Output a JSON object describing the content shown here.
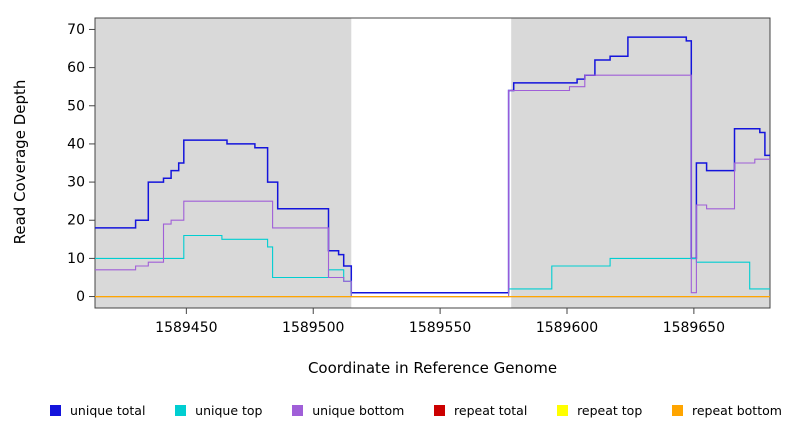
{
  "chart_data": {
    "type": "line",
    "subtype": "step-coverage",
    "title": "",
    "xlabel": "Coordinate in Reference Genome",
    "ylabel": "Read Coverage Depth",
    "x_range": [
      1589414,
      1589680
    ],
    "y_range": [
      -3,
      73
    ],
    "x_ticks": [
      1589450,
      1589500,
      1589550,
      1589600,
      1589650
    ],
    "y_ticks": [
      0,
      10,
      20,
      30,
      40,
      50,
      60,
      70
    ],
    "grid": false,
    "legend_position": "bottom",
    "plot_background": "#D9D9D9",
    "figure_background": "#FFFFFF",
    "axis_color": "#444444",
    "highlight_region": {
      "x_start": 1589515,
      "x_end": 1589578,
      "color": "#FFFFFF"
    },
    "series": [
      {
        "name": "unique total",
        "color": "#1414DC",
        "steps": [
          [
            1589414,
            18
          ],
          [
            1589430,
            20
          ],
          [
            1589435,
            30
          ],
          [
            1589441,
            31
          ],
          [
            1589444,
            33
          ],
          [
            1589447,
            35
          ],
          [
            1589449,
            41
          ],
          [
            1589464,
            41
          ],
          [
            1589466,
            40
          ],
          [
            1589477,
            39
          ],
          [
            1589482,
            30
          ],
          [
            1589486,
            23
          ],
          [
            1589504,
            23
          ],
          [
            1589506,
            12
          ],
          [
            1589510,
            11
          ],
          [
            1589512,
            8
          ],
          [
            1589515,
            1
          ],
          [
            1589577,
            54
          ],
          [
            1589579,
            56
          ],
          [
            1589604,
            57
          ],
          [
            1589607,
            58
          ],
          [
            1589611,
            62
          ],
          [
            1589617,
            63
          ],
          [
            1589624,
            68
          ],
          [
            1589646,
            68
          ],
          [
            1589647,
            67
          ],
          [
            1589649,
            10
          ],
          [
            1589651,
            35
          ],
          [
            1589655,
            33
          ],
          [
            1589666,
            44
          ],
          [
            1589676,
            43
          ],
          [
            1589678,
            37
          ]
        ]
      },
      {
        "name": "unique top",
        "color": "#00CED1",
        "steps": [
          [
            1589414,
            10
          ],
          [
            1589449,
            16
          ],
          [
            1589464,
            15
          ],
          [
            1589482,
            13
          ],
          [
            1589484,
            5
          ],
          [
            1589506,
            7
          ],
          [
            1589512,
            4
          ],
          [
            1589515,
            0
          ],
          [
            1589577,
            2
          ],
          [
            1589594,
            8
          ],
          [
            1589617,
            10
          ],
          [
            1589651,
            9
          ],
          [
            1589672,
            2
          ]
        ]
      },
      {
        "name": "unique bottom",
        "color": "#A05FD8",
        "steps": [
          [
            1589414,
            7
          ],
          [
            1589430,
            8
          ],
          [
            1589435,
            9
          ],
          [
            1589441,
            19
          ],
          [
            1589444,
            20
          ],
          [
            1589449,
            25
          ],
          [
            1589484,
            18
          ],
          [
            1589506,
            5
          ],
          [
            1589512,
            4
          ],
          [
            1589515,
            0
          ],
          [
            1589577,
            54
          ],
          [
            1589601,
            55
          ],
          [
            1589607,
            58
          ],
          [
            1589649,
            1
          ],
          [
            1589651,
            24
          ],
          [
            1589655,
            23
          ],
          [
            1589666,
            35
          ],
          [
            1589674,
            36
          ]
        ]
      },
      {
        "name": "repeat total",
        "color": "#CC0000",
        "steps": [
          [
            1589414,
            0
          ]
        ]
      },
      {
        "name": "repeat top",
        "color": "#FFFF00",
        "steps": [
          [
            1589414,
            0
          ]
        ]
      },
      {
        "name": "repeat bottom",
        "color": "#FFA500",
        "steps": [
          [
            1589414,
            0
          ]
        ]
      }
    ],
    "legend": [
      "unique total",
      "unique top",
      "unique bottom",
      "repeat total",
      "repeat top",
      "repeat bottom"
    ]
  }
}
